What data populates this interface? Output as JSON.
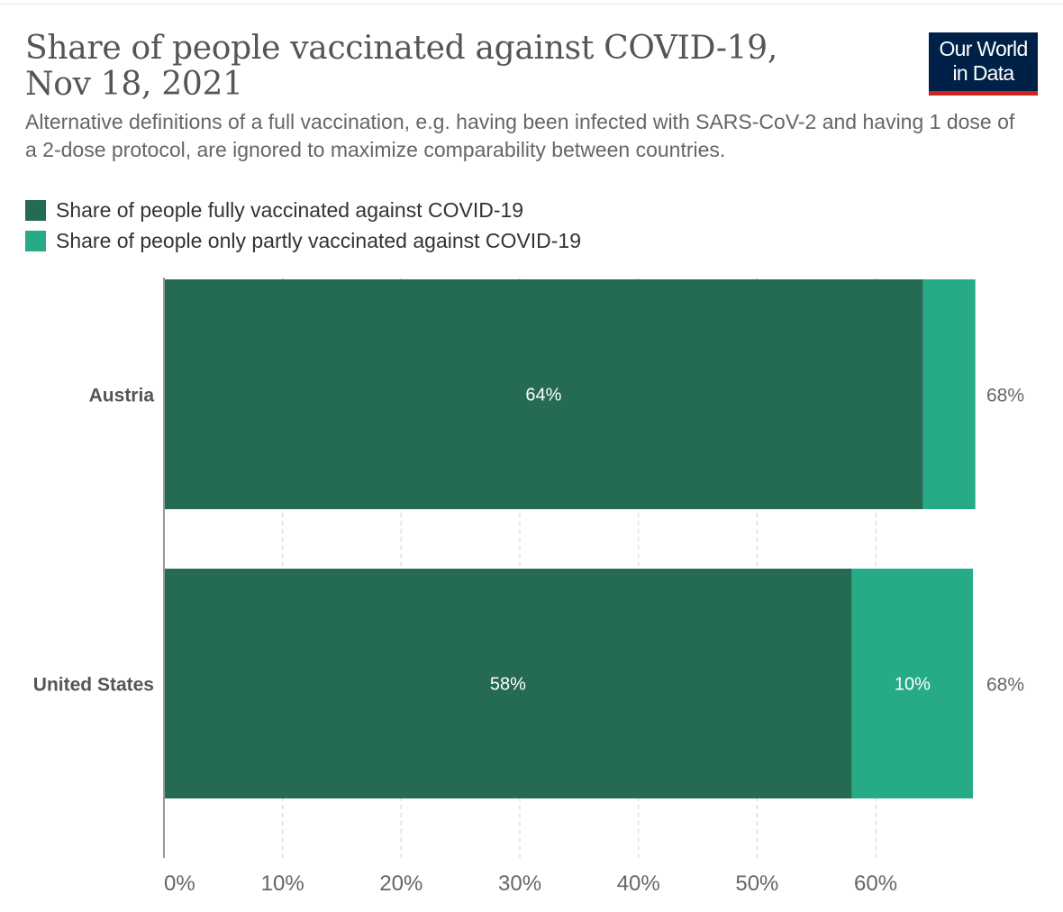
{
  "title": "Share of people vaccinated against COVID-19, Nov 18, 2021",
  "subtitle": "Alternative definitions of a full vaccination, e.g. having been infected with SARS-CoV-2 and having 1 dose of a 2-dose protocol, are ignored to maximize comparability between countries.",
  "logo": {
    "line1": "Our World",
    "line2": "in Data"
  },
  "colors": {
    "fully": "#256a53",
    "partly": "#27ab87",
    "logo_bg": "#002147",
    "logo_accent": "#ce261e"
  },
  "chart_data": {
    "type": "bar",
    "orientation": "horizontal",
    "stacked": true,
    "categories": [
      "Austria",
      "United States"
    ],
    "series": [
      {
        "name": "Share of people fully vaccinated against COVID-19",
        "values": [
          64,
          58
        ],
        "labels": [
          "64%",
          "58%"
        ]
      },
      {
        "name": "Share of people only partly vaccinated against COVID-19",
        "values": [
          4.4,
          10.2
        ],
        "labels": [
          "",
          "10%"
        ]
      }
    ],
    "totals": [
      "68%",
      "68%"
    ],
    "xlim": [
      0,
      68.5
    ],
    "xticks": [
      0,
      10,
      20,
      30,
      40,
      50,
      60
    ],
    "xtick_labels": [
      "0%",
      "10%",
      "20%",
      "30%",
      "40%",
      "50%",
      "60%"
    ],
    "grid": "vertical-dashed",
    "legend": "top-left"
  }
}
